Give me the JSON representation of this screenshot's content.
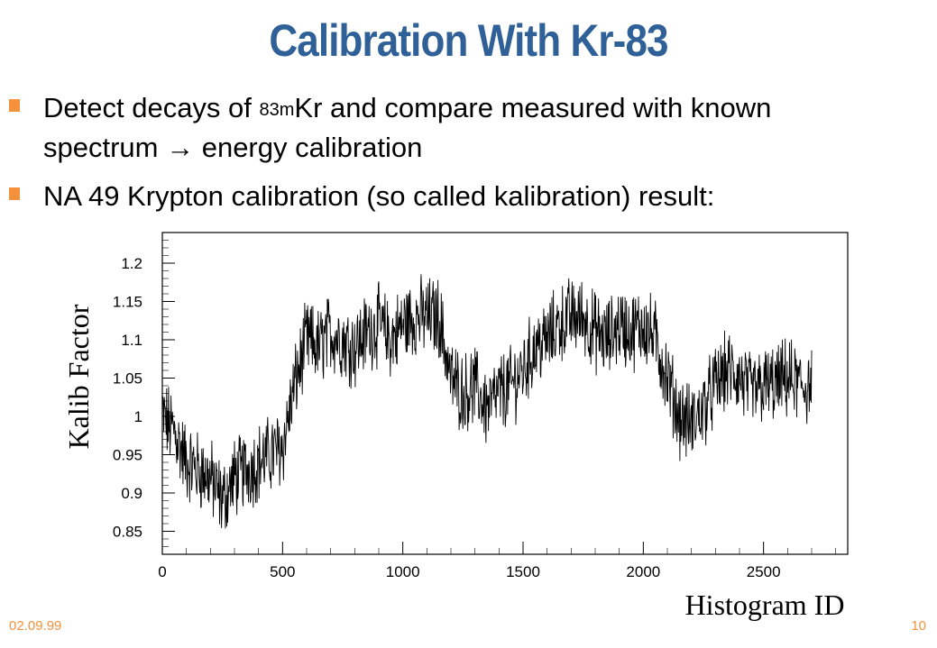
{
  "slide": {
    "title": "Calibration With Kr-83",
    "bullets": [
      {
        "pre": "Detect decays of ",
        "sup": "83m",
        "post": "Kr and compare measured with known spectrum → energy calibration"
      },
      {
        "text": "NA 49 Krypton calibration (so called kalibration) result:"
      }
    ],
    "footer_date": "02.09.99",
    "page_number": "10"
  },
  "colors": {
    "title": "#2f6198",
    "bullet_marker": "#f4913c",
    "footer": "#f4913c",
    "plot": "#000000"
  },
  "chart_data": {
    "type": "line",
    "xlabel": "Histogram ID",
    "ylabel": "Kalib Factor",
    "xlim": [
      0,
      2850
    ],
    "ylim": [
      0.82,
      1.24
    ],
    "x_ticks": [
      0,
      500,
      1000,
      1500,
      2000,
      2500
    ],
    "x_tick_labels": [
      "0",
      "500",
      "1000",
      "1500",
      "2000",
      "2500"
    ],
    "y_ticks": [
      0.85,
      0.9,
      0.95,
      1.0,
      1.05,
      1.1,
      1.15,
      1.2
    ],
    "y_tick_labels": [
      "0.85",
      "0.9",
      "0.95",
      "1",
      "1.05",
      "1.1",
      "1.15",
      "1.2"
    ],
    "grid": false,
    "series": [
      {
        "x": [
          0,
          50,
          100,
          150,
          200,
          250,
          300,
          350,
          400,
          450,
          500,
          550,
          600,
          650,
          700,
          750,
          800,
          850,
          900,
          950,
          1000,
          1050,
          1100,
          1150,
          1200,
          1250,
          1300,
          1350,
          1400,
          1450,
          1500,
          1550,
          1600,
          1650,
          1700,
          1750,
          1800,
          1850,
          1900,
          1950,
          2000,
          2050,
          2100,
          2150,
          2200,
          2250,
          2300,
          2350,
          2400,
          2450,
          2500,
          2550,
          2600,
          2650,
          2700
        ],
        "y": [
          1.0,
          0.98,
          0.94,
          0.93,
          0.92,
          0.89,
          0.92,
          0.93,
          0.94,
          0.95,
          0.96,
          1.04,
          1.1,
          1.09,
          1.11,
          1.1,
          1.09,
          1.11,
          1.12,
          1.1,
          1.12,
          1.13,
          1.13,
          1.13,
          1.05,
          1.03,
          1.04,
          1.01,
          1.03,
          1.04,
          1.06,
          1.09,
          1.1,
          1.12,
          1.13,
          1.13,
          1.11,
          1.1,
          1.12,
          1.11,
          1.12,
          1.1,
          1.05,
          1.0,
          0.99,
          1.01,
          1.04,
          1.06,
          1.05,
          1.03,
          1.04,
          1.04,
          1.05,
          1.04,
          1.04
        ]
      }
    ]
  }
}
